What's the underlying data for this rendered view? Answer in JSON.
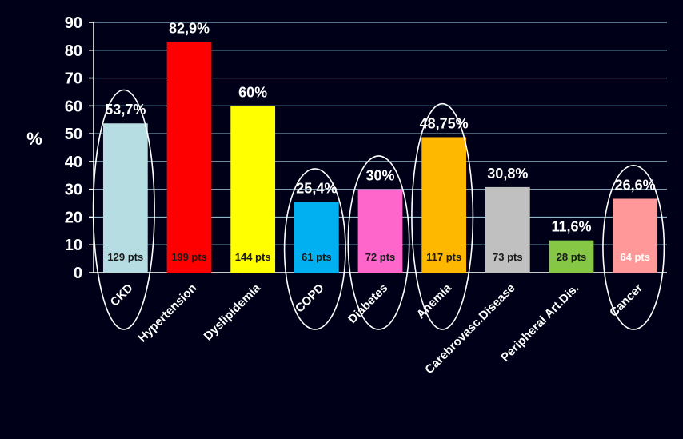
{
  "chart_data": {
    "type": "bar",
    "ylabel": "%",
    "ylim": [
      0,
      90
    ],
    "yticks": [
      0,
      10,
      20,
      30,
      40,
      50,
      60,
      70,
      80,
      90
    ],
    "grid": true,
    "categories": [
      "CKD",
      "Hypertension",
      "Dyslipidemia",
      "COPD",
      "Diabetes",
      "Anemia",
      "Carebrovasc.Disease",
      "Peripheral Art.Dis.",
      "Cancer"
    ],
    "values": [
      53.7,
      82.9,
      60,
      25.4,
      30,
      48.75,
      30.8,
      11.6,
      26.6
    ],
    "value_labels": [
      "53,7%",
      "82,9%",
      "60%",
      "25,4%",
      "30%",
      "48,75%",
      "30,8%",
      "11,6%",
      "26,6%"
    ],
    "pts_labels": [
      "129 pts",
      "199 pts",
      "144 pts",
      "61 pts",
      "72 pts",
      "117 pts",
      "73 pts",
      "28 pts",
      "64 pts"
    ],
    "colors": [
      "#b6dde2",
      "#ff0000",
      "#ffff00",
      "#00b0f0",
      "#ff66cc",
      "#ffb800",
      "#c0c0c0",
      "#86c846",
      "#ff9999"
    ],
    "pts_colors": [
      "#1a1a1a",
      "#1a1a1a",
      "#1a1a1a",
      "#1a1a1a",
      "#1a1a1a",
      "#1a1a1a",
      "#1a1a1a",
      "#1a1a1a",
      "#ffffff"
    ],
    "circled": [
      "CKD",
      "COPD",
      "Diabetes",
      "Anemia",
      "Cancer"
    ]
  }
}
